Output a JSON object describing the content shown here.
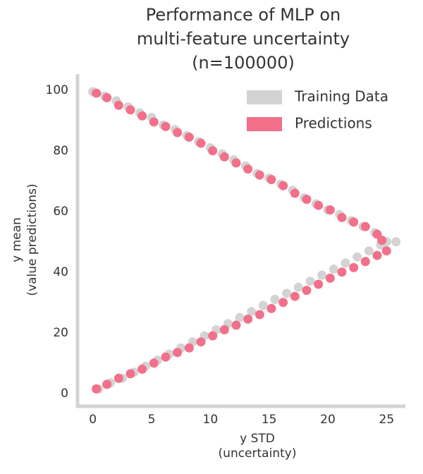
{
  "chart_data": {
    "type": "scatter",
    "title": [
      "Performance of MLP on",
      "multi-feature uncertainty",
      "(n=100000)"
    ],
    "xlabel": [
      "y STD",
      "(uncertainty)"
    ],
    "ylabel": [
      "y mean",
      "(value predictions)"
    ],
    "xlim": [
      -1.3,
      26.6
    ],
    "ylim": [
      -4,
      105.3
    ],
    "xticks": [
      0,
      5,
      10,
      15,
      20,
      25
    ],
    "yticks": [
      0,
      20,
      40,
      60,
      80,
      100
    ],
    "legend": "upper right",
    "series": [
      {
        "name": "Training Data",
        "color": "#d3d3d3",
        "x": [
          0,
          1,
          2,
          3,
          4,
          5,
          6,
          7,
          8,
          9,
          10,
          11,
          12,
          13,
          14,
          15,
          16,
          17,
          18,
          19,
          20,
          21,
          22,
          23,
          24,
          25,
          25.8,
          0.5,
          1.5,
          2.5,
          3.5,
          4.5,
          5.5,
          6.5,
          7.5,
          8.5,
          9.5,
          10.5,
          11.5,
          12.5,
          13.5,
          14.5,
          15.5,
          16.5,
          17.5,
          18.5,
          19.5,
          20.5,
          21.5,
          22.5,
          23.5,
          24.5
        ],
        "values": [
          99.5,
          98,
          96.5,
          94.5,
          92.5,
          91,
          88.5,
          87,
          85,
          83,
          81,
          79,
          77,
          75,
          72.5,
          71,
          69,
          67,
          64.5,
          62.5,
          60.5,
          59,
          57,
          55,
          53,
          50,
          50,
          1.5,
          3.5,
          5,
          7,
          9,
          11,
          13,
          15,
          17,
          19,
          21,
          23,
          25,
          27,
          29,
          31,
          33,
          35,
          37,
          39,
          41,
          43,
          45,
          47,
          49
        ]
      },
      {
        "name": "Predictions",
        "color": "#f2708a",
        "x": [
          0.3,
          1.2,
          2.2,
          3.2,
          4.2,
          5.2,
          6.2,
          7.2,
          8.2,
          9.2,
          10.2,
          11.2,
          12.2,
          13.2,
          14.2,
          15.2,
          16.2,
          17.2,
          18.2,
          19.2,
          20.2,
          21.2,
          22.2,
          23.2,
          24.2,
          24.6,
          0.3,
          1.2,
          2.2,
          3.2,
          4.2,
          5.2,
          6.2,
          7.2,
          8.2,
          9.2,
          10.2,
          11.2,
          12.2,
          13.2,
          14.2,
          15.2,
          16.2,
          17.2,
          18.2,
          19.2,
          20.2,
          21.2,
          22.2,
          23.2,
          24.2,
          25
        ],
        "values": [
          99,
          97.5,
          95,
          93.5,
          91.5,
          89.5,
          88,
          86,
          84.5,
          82.5,
          80,
          78,
          76,
          74,
          72,
          70.5,
          68.5,
          66,
          64,
          62,
          60.5,
          58,
          56.5,
          55,
          52.5,
          50.5,
          1.5,
          3,
          5,
          6.5,
          8,
          10,
          12,
          13.5,
          15,
          17,
          19,
          21,
          22.5,
          24.5,
          26,
          28,
          30,
          32,
          34,
          36,
          38,
          40,
          41.5,
          43.5,
          45.5,
          47
        ]
      }
    ]
  }
}
